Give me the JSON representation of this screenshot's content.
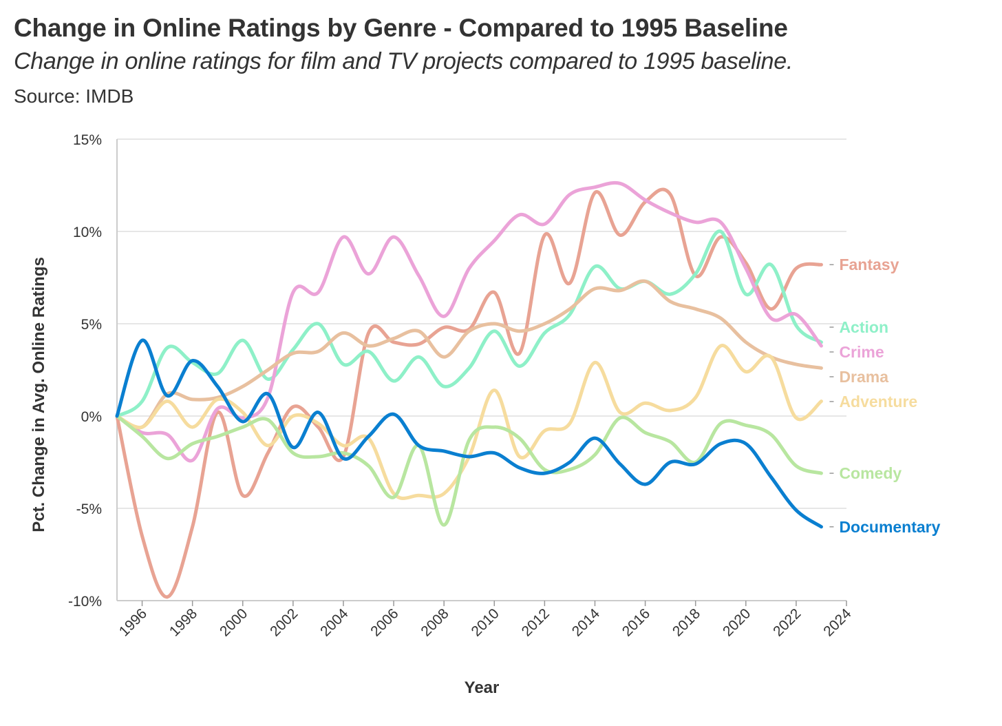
{
  "header": {
    "title": "Change in Online Ratings by Genre - Compared to 1995 Baseline",
    "subtitle": "Change in online ratings for film and TV projects compared to 1995 baseline.",
    "source": "Source: IMDB"
  },
  "chart_data": {
    "type": "line",
    "title": "Change in Online Ratings by Genre - Compared to 1995 Baseline",
    "subtitle": "Change in online ratings for film and TV projects compared to 1995 baseline.",
    "xlabel": "Year",
    "ylabel": "Pct. Change in Avg. Online Ratings",
    "xlim": [
      1995,
      2024
    ],
    "ylim": [
      -10,
      15
    ],
    "x_ticks": [
      "1996",
      "1998",
      "2000",
      "2002",
      "2004",
      "2006",
      "2008",
      "2010",
      "2012",
      "2014",
      "2016",
      "2018",
      "2020",
      "2022",
      "2024"
    ],
    "y_ticks": [
      "15%",
      "10%",
      "5%",
      "0%",
      "-5%",
      "-10%"
    ],
    "y_tick_values": [
      15,
      10,
      5,
      0,
      -5,
      -10
    ],
    "grid": "horizontal",
    "legend": "direct labels at line ends (right)",
    "x": [
      1995,
      1996,
      1997,
      1998,
      1999,
      2000,
      2001,
      2002,
      2003,
      2004,
      2005,
      2006,
      2007,
      2008,
      2009,
      2010,
      2011,
      2012,
      2013,
      2014,
      2015,
      2016,
      2017,
      2018,
      2019,
      2020,
      2021,
      2022,
      2023
    ],
    "series": [
      {
        "name": "Fantasy",
        "color": "#e8a393",
        "values": [
          0,
          -6.5,
          -9.8,
          -6,
          0.2,
          -4.3,
          -2,
          0.5,
          -0.6,
          -2.2,
          4.5,
          4,
          3.9,
          4.8,
          4.7,
          6.7,
          3.4,
          9.8,
          7.2,
          12.1,
          9.8,
          11.6,
          12,
          7.6,
          9.7,
          8.3,
          5.8,
          8,
          8.2
        ]
      },
      {
        "name": "Action",
        "color": "#8ef0c8",
        "values": [
          0,
          0.8,
          3.7,
          2.9,
          2.3,
          4.1,
          2,
          3.6,
          5,
          2.8,
          3.5,
          1.9,
          3.2,
          1.6,
          2.6,
          4.6,
          2.7,
          4.5,
          5.5,
          8.1,
          6.9,
          7.3,
          6.6,
          7.7,
          10,
          6.6,
          8.2,
          4.9,
          4
        ]
      },
      {
        "name": "Crime",
        "color": "#eba3d8",
        "values": [
          0,
          -0.9,
          -1,
          -2.4,
          0.4,
          -0.1,
          1,
          6.7,
          6.7,
          9.7,
          7.7,
          9.7,
          7.6,
          5.4,
          8,
          9.5,
          10.9,
          10.4,
          12,
          12.4,
          12.6,
          11.7,
          11,
          10.5,
          10.5,
          8,
          5.3,
          5.5,
          3.8
        ]
      },
      {
        "name": "Drama",
        "color": "#e8c09f",
        "values": [
          0,
          -0.6,
          1.2,
          0.9,
          1,
          1.6,
          2.5,
          3.4,
          3.5,
          4.5,
          3.8,
          4.2,
          4.6,
          3.2,
          4.6,
          5,
          4.6,
          5,
          5.8,
          6.9,
          6.8,
          7.3,
          6.2,
          5.8,
          5.3,
          4,
          3.2,
          2.8,
          2.6
        ]
      },
      {
        "name": "Adventure",
        "color": "#f6dc9e",
        "values": [
          0,
          -0.6,
          0.8,
          -0.6,
          0.9,
          0.2,
          -1.6,
          0,
          -0.4,
          -1.6,
          -1.2,
          -4.2,
          -4.3,
          -4.2,
          -2.2,
          1.4,
          -2.2,
          -0.8,
          -0.4,
          2.9,
          0.2,
          0.7,
          0.3,
          1,
          3.8,
          2.4,
          3.2,
          -0.1,
          0.8
        ]
      },
      {
        "name": "Comedy",
        "color": "#b8e6a0",
        "values": [
          0,
          -1.1,
          -2.3,
          -1.5,
          -1.1,
          -0.6,
          -0.2,
          -2,
          -2.2,
          -2,
          -2.7,
          -4.4,
          -1.6,
          -5.9,
          -1.3,
          -0.6,
          -1.2,
          -2.9,
          -2.9,
          -2.1,
          -0.1,
          -0.9,
          -1.4,
          -2.5,
          -0.4,
          -0.5,
          -1,
          -2.7,
          -3.1
        ]
      },
      {
        "name": "Documentary",
        "color": "#0a7fd0",
        "values": [
          0,
          4.1,
          1.1,
          3,
          1.6,
          -0.3,
          1.2,
          -1.7,
          0.2,
          -2.3,
          -1.1,
          0.1,
          -1.6,
          -1.9,
          -2.2,
          -2,
          -2.8,
          -3.1,
          -2.5,
          -1.2,
          -2.6,
          -3.7,
          -2.5,
          -2.6,
          -1.5,
          -1.5,
          -3.3,
          -5.1,
          -6
        ]
      }
    ],
    "end_labels": [
      "Fantasy",
      "Action",
      "Crime",
      "Drama",
      "Adventure",
      "Comedy",
      "Documentary"
    ]
  }
}
